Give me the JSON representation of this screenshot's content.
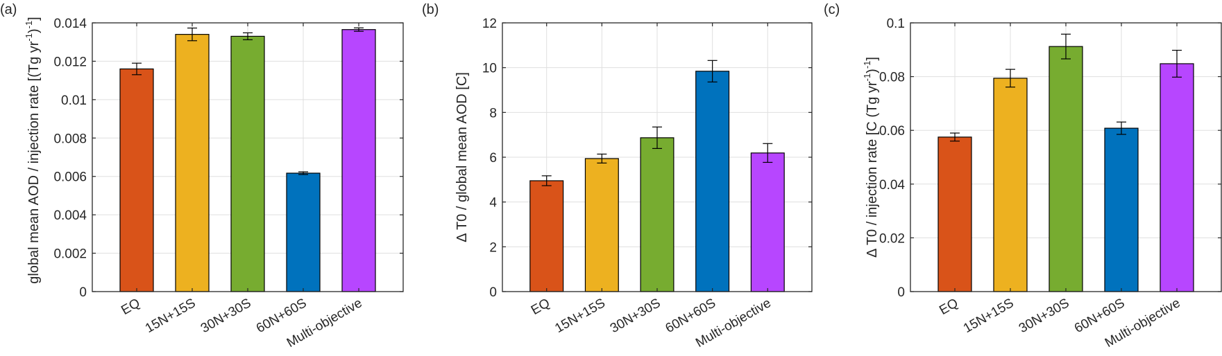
{
  "figure": {
    "panel_labels": [
      "(a)",
      "(b)",
      "(c)"
    ]
  },
  "chart_data": [
    {
      "type": "bar",
      "panel": "(a)",
      "title": "",
      "xlabel": "",
      "ylabel": "global mean AOD / injection rate [(Tg yr^-1)^-1]",
      "ylabel_parts": [
        {
          "t": "global mean AOD / injection rate [(Tg yr",
          "sup": false
        },
        {
          "t": "-1",
          "sup": true
        },
        {
          "t": ")",
          "sup": false
        },
        {
          "t": "-1",
          "sup": true
        },
        {
          "t": "]",
          "sup": false
        }
      ],
      "categories": [
        "EQ",
        "15N+15S",
        "30N+30S",
        "60N+60S",
        "Multi-objective"
      ],
      "values": [
        0.0116,
        0.0134,
        0.0133,
        0.00617,
        0.01365
      ],
      "errors": [
        0.0003,
        0.00033,
        0.00018,
        7e-05,
        9e-05
      ],
      "ylim": [
        0,
        0.014
      ],
      "yticks": [
        0,
        0.002,
        0.004,
        0.006,
        0.008,
        0.01,
        0.012,
        0.014
      ],
      "ytick_labels": [
        "0",
        "0.002",
        "0.004",
        "0.006",
        "0.008",
        "0.01",
        "0.012",
        "0.014"
      ],
      "grid": true,
      "legend": "none"
    },
    {
      "type": "bar",
      "panel": "(b)",
      "title": "",
      "xlabel": "",
      "ylabel": "ΔT0 / global mean AOD [C]",
      "ylabel_parts": [
        {
          "t": "Δ T0 / global mean AOD [C]",
          "sup": false
        }
      ],
      "categories": [
        "EQ",
        "15N+15S",
        "30N+30S",
        "60N+60S",
        "Multi-objective"
      ],
      "values": [
        4.95,
        5.94,
        6.87,
        9.84,
        6.19
      ],
      "errors": [
        0.22,
        0.2,
        0.48,
        0.48,
        0.42
      ],
      "ylim": [
        0,
        12
      ],
      "yticks": [
        0,
        2,
        4,
        6,
        8,
        10,
        12
      ],
      "ytick_labels": [
        "0",
        "2",
        "4",
        "6",
        "8",
        "10",
        "12"
      ],
      "grid": true,
      "legend": "none"
    },
    {
      "type": "bar",
      "panel": "(c)",
      "title": "",
      "xlabel": "",
      "ylabel": "ΔT0 / injection rate [C (Tg yr^-1)^-1]",
      "ylabel_parts": [
        {
          "t": "Δ T0 / injection rate [C (Tg yr",
          "sup": false
        },
        {
          "t": "-1",
          "sup": true
        },
        {
          "t": ")",
          "sup": false
        },
        {
          "t": "-1",
          "sup": true
        },
        {
          "t": "]",
          "sup": false
        }
      ],
      "categories": [
        "EQ",
        "15N+15S",
        "30N+30S",
        "60N+60S",
        "Multi-objective"
      ],
      "values": [
        0.0575,
        0.0794,
        0.0912,
        0.0608,
        0.0848
      ],
      "errors": [
        0.0015,
        0.0033,
        0.0046,
        0.0023,
        0.005
      ],
      "ylim": [
        0,
        0.1
      ],
      "yticks": [
        0,
        0.02,
        0.04,
        0.06,
        0.08,
        0.1
      ],
      "ytick_labels": [
        "0",
        "0.02",
        "0.04",
        "0.06",
        "0.08",
        "0.1"
      ],
      "grid": true,
      "legend": "none"
    }
  ],
  "colors": {
    "EQ": "#D95319",
    "15N+15S": "#EDB120",
    "30N+30S": "#77AC30",
    "60N+60S": "#0072BD",
    "Multi-objective": "#B746FF",
    "axis": "#262626",
    "grid": "#DFDFDF"
  }
}
